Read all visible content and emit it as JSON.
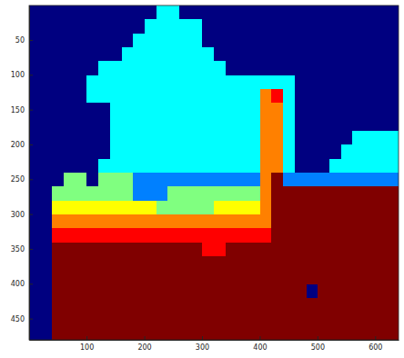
{
  "chart_data": {
    "type": "heatmap",
    "xlim": [
      0.5,
      640.5
    ],
    "ylim": [
      0.5,
      480.5
    ],
    "xticks": [
      100,
      200,
      300,
      400,
      500,
      600
    ],
    "yticks": [
      50,
      100,
      150,
      200,
      250,
      300,
      350,
      400,
      450
    ],
    "zlim": [
      0,
      8
    ],
    "z": [
      [
        0,
        0,
        0,
        0,
        0,
        0,
        0,
        0,
        0,
        0,
        0,
        3,
        3,
        0,
        0,
        0,
        0,
        0,
        0,
        0,
        0,
        0,
        0,
        0,
        0,
        0,
        0,
        0,
        0,
        0,
        0,
        0
      ],
      [
        0,
        0,
        0,
        0,
        0,
        0,
        0,
        0,
        0,
        0,
        3,
        3,
        3,
        3,
        3,
        0,
        0,
        0,
        0,
        0,
        0,
        0,
        0,
        0,
        0,
        0,
        0,
        0,
        0,
        0,
        0,
        0
      ],
      [
        0,
        0,
        0,
        0,
        0,
        0,
        0,
        0,
        0,
        3,
        3,
        3,
        3,
        3,
        3,
        0,
        0,
        0,
        0,
        0,
        0,
        0,
        0,
        0,
        0,
        0,
        0,
        0,
        0,
        0,
        0,
        0
      ],
      [
        0,
        0,
        0,
        0,
        0,
        0,
        0,
        0,
        3,
        3,
        3,
        3,
        3,
        3,
        3,
        3,
        0,
        0,
        0,
        0,
        0,
        0,
        0,
        0,
        0,
        0,
        0,
        0,
        0,
        0,
        0,
        0
      ],
      [
        0,
        0,
        0,
        0,
        0,
        0,
        3,
        3,
        3,
        3,
        3,
        3,
        3,
        3,
        3,
        3,
        3,
        0,
        0,
        0,
        0,
        0,
        0,
        0,
        0,
        0,
        0,
        0,
        0,
        0,
        0,
        0
      ],
      [
        0,
        0,
        0,
        0,
        0,
        3,
        3,
        3,
        3,
        3,
        3,
        3,
        3,
        3,
        3,
        3,
        3,
        3,
        3,
        3,
        3,
        3,
        3,
        0,
        0,
        0,
        0,
        0,
        0,
        0,
        0,
        0
      ],
      [
        0,
        0,
        0,
        0,
        0,
        3,
        3,
        3,
        3,
        3,
        3,
        3,
        3,
        3,
        3,
        3,
        3,
        3,
        3,
        3,
        6,
        7,
        3,
        0,
        0,
        0,
        0,
        0,
        0,
        0,
        0,
        0
      ],
      [
        0,
        0,
        0,
        0,
        0,
        0,
        0,
        3,
        3,
        3,
        3,
        3,
        3,
        3,
        3,
        3,
        3,
        3,
        3,
        3,
        6,
        6,
        3,
        0,
        0,
        0,
        0,
        0,
        0,
        0,
        0,
        0
      ],
      [
        0,
        0,
        0,
        0,
        0,
        0,
        0,
        3,
        3,
        3,
        3,
        3,
        3,
        3,
        3,
        3,
        3,
        3,
        3,
        3,
        6,
        6,
        3,
        0,
        0,
        0,
        0,
        0,
        0,
        0,
        0,
        0
      ],
      [
        0,
        0,
        0,
        0,
        0,
        0,
        0,
        3,
        3,
        3,
        3,
        3,
        3,
        3,
        3,
        3,
        3,
        3,
        3,
        3,
        6,
        6,
        3,
        0,
        0,
        0,
        0,
        0,
        3,
        3,
        3,
        3
      ],
      [
        0,
        0,
        0,
        0,
        0,
        0,
        0,
        3,
        3,
        3,
        3,
        3,
        3,
        3,
        3,
        3,
        3,
        3,
        3,
        3,
        6,
        6,
        3,
        0,
        0,
        0,
        0,
        3,
        3,
        3,
        3,
        3
      ],
      [
        0,
        0,
        0,
        0,
        0,
        0,
        3,
        3,
        3,
        3,
        3,
        3,
        3,
        3,
        3,
        3,
        3,
        3,
        3,
        3,
        6,
        6,
        3,
        0,
        0,
        0,
        3,
        3,
        3,
        3,
        3,
        3
      ],
      [
        0,
        0,
        0,
        4,
        4,
        0,
        4,
        4,
        4,
        2,
        2,
        2,
        2,
        2,
        2,
        2,
        2,
        2,
        2,
        2,
        6,
        8,
        2,
        2,
        2,
        2,
        2,
        2,
        2,
        2,
        2,
        2
      ],
      [
        0,
        0,
        4,
        4,
        4,
        4,
        4,
        4,
        4,
        2,
        2,
        2,
        4,
        4,
        4,
        4,
        4,
        4,
        4,
        4,
        6,
        8,
        8,
        8,
        8,
        8,
        8,
        8,
        8,
        8,
        8,
        8
      ],
      [
        0,
        0,
        5,
        5,
        5,
        5,
        5,
        5,
        5,
        5,
        5,
        4,
        4,
        4,
        4,
        4,
        5,
        5,
        5,
        5,
        6,
        8,
        8,
        8,
        8,
        8,
        8,
        8,
        8,
        8,
        8,
        8
      ],
      [
        0,
        0,
        6,
        6,
        6,
        6,
        6,
        6,
        6,
        6,
        6,
        6,
        6,
        6,
        6,
        6,
        6,
        6,
        6,
        6,
        6,
        8,
        8,
        8,
        8,
        8,
        8,
        8,
        8,
        8,
        8,
        8
      ],
      [
        0,
        0,
        7,
        7,
        7,
        7,
        7,
        7,
        7,
        7,
        7,
        7,
        7,
        7,
        7,
        7,
        7,
        7,
        7,
        7,
        7,
        8,
        8,
        8,
        8,
        8,
        8,
        8,
        8,
        8,
        8,
        8
      ],
      [
        0,
        0,
        8,
        8,
        8,
        8,
        8,
        8,
        8,
        8,
        8,
        8,
        8,
        8,
        8,
        7,
        7,
        8,
        8,
        8,
        8,
        8,
        8,
        8,
        8,
        8,
        8,
        8,
        8,
        8,
        8,
        8
      ],
      [
        0,
        0,
        8,
        8,
        8,
        8,
        8,
        8,
        8,
        8,
        8,
        8,
        8,
        8,
        8,
        8,
        8,
        8,
        8,
        8,
        8,
        8,
        8,
        8,
        8,
        8,
        8,
        8,
        8,
        8,
        8,
        8
      ],
      [
        0,
        0,
        8,
        8,
        8,
        8,
        8,
        8,
        8,
        8,
        8,
        8,
        8,
        8,
        8,
        8,
        8,
        8,
        8,
        8,
        8,
        8,
        8,
        8,
        8,
        8,
        8,
        8,
        8,
        8,
        8,
        8
      ],
      [
        0,
        0,
        8,
        8,
        8,
        8,
        8,
        8,
        8,
        8,
        8,
        8,
        8,
        8,
        8,
        8,
        8,
        8,
        8,
        8,
        8,
        8,
        8,
        8,
        0,
        8,
        8,
        8,
        8,
        8,
        8,
        8
      ],
      [
        0,
        0,
        8,
        8,
        8,
        8,
        8,
        8,
        8,
        8,
        8,
        8,
        8,
        8,
        8,
        8,
        8,
        8,
        8,
        8,
        8,
        8,
        8,
        8,
        8,
        8,
        8,
        8,
        8,
        8,
        8,
        8
      ],
      [
        0,
        0,
        8,
        8,
        8,
        8,
        8,
        8,
        8,
        8,
        8,
        8,
        8,
        8,
        8,
        8,
        8,
        8,
        8,
        8,
        8,
        8,
        8,
        8,
        8,
        8,
        8,
        8,
        8,
        8,
        8,
        8
      ],
      [
        0,
        0,
        8,
        8,
        8,
        8,
        8,
        8,
        8,
        8,
        8,
        8,
        8,
        8,
        8,
        8,
        8,
        8,
        8,
        8,
        8,
        8,
        8,
        8,
        8,
        8,
        8,
        8,
        8,
        8,
        8,
        8
      ]
    ]
  }
}
